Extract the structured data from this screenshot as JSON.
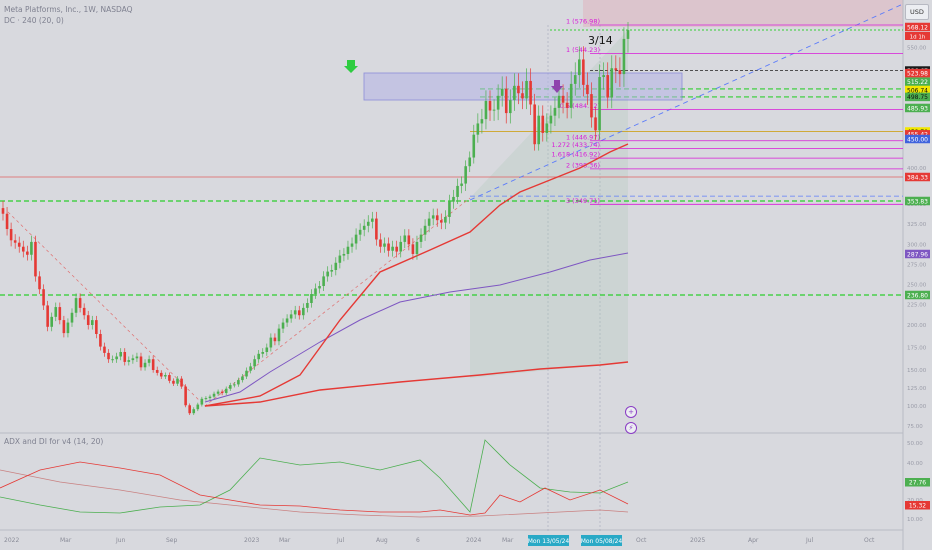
{
  "header": {
    "symbol": "Meta Platforms, Inc., 1W, NASDAQ",
    "indicator": "DC · 240 (20, 0)",
    "currency": "USD",
    "adx_label": "ADX and DI for v4 (14, 20)"
  },
  "colors": {
    "background": "#d8d9de",
    "up": "#4caf50",
    "down": "#e53935",
    "fib": "#d81bd8",
    "support": "#00cc00",
    "ma_purple": "#7e57c2",
    "ma_red": "#e53935",
    "trend": "#5c7cfa"
  },
  "chart_data": {
    "type": "candlestick",
    "title": "Meta Platforms, Inc., 1W, NASDAQ",
    "x_tick_labels": [
      "2022",
      "Mar",
      "Jun",
      "Sep",
      "2023",
      "Mar",
      "Jul",
      "Aug",
      "6",
      "2024",
      "Mar",
      "May",
      "Jul",
      "Oct",
      "2025",
      "Apr",
      "Jul",
      "Oct"
    ],
    "y_axis_labels": [
      "568.12",
      "526.67",
      "523.98",
      "515.22",
      "506.74",
      "498.75",
      "485.93",
      "458.70",
      "455.42",
      "450.00",
      "384.33",
      "353.83",
      "287.96",
      "236.80"
    ],
    "y_tick_labels": [
      "600.00",
      "550.00",
      "500.00",
      "450.00",
      "400.00",
      "350.00",
      "325.00",
      "300.00",
      "275.00",
      "250.00",
      "225.00",
      "200.00",
      "175.00",
      "150.00",
      "125.00",
      "100.00",
      "75.00"
    ],
    "price_tag_sub": "1d 1h",
    "fib_levels": [
      {
        "label": "1 (576.98)",
        "value": 576.98
      },
      {
        "label": "1 (544.23)",
        "value": 544.23
      },
      {
        "label": "0.5 (484.12)",
        "value": 484.12
      },
      {
        "label": "1 (446.97)",
        "value": 446.97
      },
      {
        "label": "1.272 (433.74)",
        "value": 433.74
      },
      {
        "label": "1.618 (416.92)",
        "value": 416.92
      },
      {
        "label": "2 (398.36)",
        "value": 398.36
      },
      {
        "label": "3 (349.71)",
        "value": 349.71
      }
    ],
    "annotation": "3/14",
    "date_markers": [
      "Mon 13/05/24",
      "Mon 05/08/24"
    ],
    "closes": [
      338,
      319,
      305,
      302,
      297,
      291,
      287,
      303,
      260,
      244,
      224,
      198,
      210,
      222,
      206,
      191,
      203,
      215,
      233,
      221,
      212,
      200,
      206,
      190,
      176,
      169,
      162,
      162,
      165,
      170,
      159,
      161,
      163,
      165,
      153,
      158,
      162,
      150,
      146,
      141,
      143,
      135,
      131,
      138,
      127,
      101,
      91,
      96,
      102,
      110,
      111,
      113,
      117,
      120,
      118,
      124,
      129,
      130,
      136,
      141,
      149,
      154,
      162,
      168,
      170,
      175,
      186,
      182,
      196,
      203,
      208,
      213,
      218,
      212,
      221,
      227,
      238,
      245,
      248,
      260,
      266,
      268,
      277,
      286,
      288,
      297,
      301,
      312,
      318,
      323,
      328,
      332,
      306,
      297,
      301,
      292,
      297,
      291,
      303,
      311,
      300,
      288,
      303,
      312,
      323,
      332,
      336,
      330,
      327,
      334,
      353,
      359,
      373,
      376,
      403,
      418,
      455,
      468,
      473,
      494,
      483,
      484,
      500,
      508,
      480,
      495,
      511,
      503,
      497,
      516,
      490,
      441,
      477,
      457,
      468,
      477,
      486,
      500,
      492,
      486,
      513,
      522,
      538,
      512,
      502,
      475,
      460,
      520,
      522,
      498,
      529,
      527,
      523,
      559,
      568
    ],
    "x_tick_labels_bottom": [
      "2022",
      "Mar",
      "Jun",
      "Sep",
      "2023",
      "Mar",
      "Jul",
      "Aug",
      "6",
      "2024",
      "Mar",
      "May",
      "Jul",
      "Oct",
      "2025",
      "Apr",
      "Jul",
      "Oct"
    ],
    "adx_values": {
      "green": "27.76",
      "red": "15.32"
    },
    "adx_ticks": [
      "50.00",
      "40.00",
      "30.00",
      "20.00",
      "10.00"
    ]
  }
}
